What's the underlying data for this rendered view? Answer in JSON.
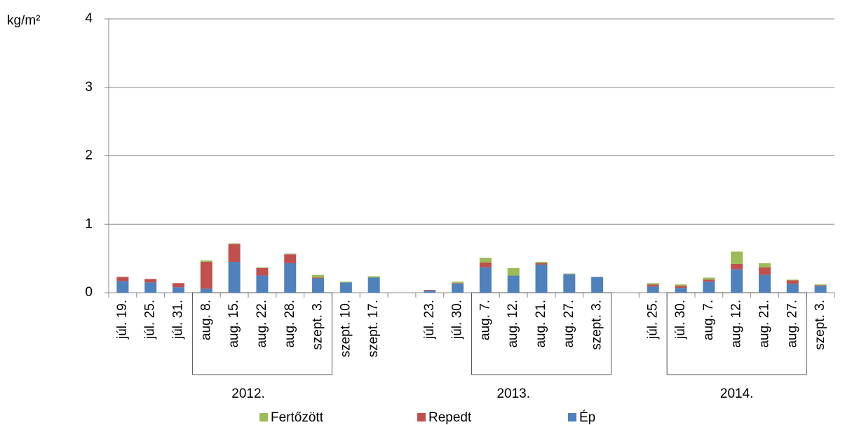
{
  "chart_data": {
    "type": "stacked_bar",
    "y_label": "kg/m²",
    "categories": [
      "júl. 19.",
      "júl. 25.",
      "júl. 31.",
      "aug. 8.",
      "aug. 15.",
      "aug. 22.",
      "aug. 28.",
      "szept. 3.",
      "szept. 10.",
      "szept. 17.",
      null,
      "júl. 23.",
      "júl. 30.",
      "aug. 7.",
      "aug. 12.",
      "aug. 21.",
      "aug. 27.",
      "szept. 3.",
      null,
      "júl. 25.",
      "júl. 30.",
      "aug. 7.",
      "aug. 12.",
      "aug. 21.",
      "aug. 27.",
      "szept. 3."
    ],
    "groups": [
      "2012.",
      "2013.",
      "2014."
    ],
    "series": [
      {
        "name": "Ép",
        "color": "#4f81bd",
        "values": [
          0.17,
          0.15,
          0.08,
          0.06,
          0.45,
          0.25,
          0.43,
          0.21,
          0.15,
          0.22,
          null,
          0.03,
          0.13,
          0.37,
          0.25,
          0.41,
          0.27,
          0.23,
          null,
          0.09,
          0.07,
          0.16,
          0.34,
          0.26,
          0.13,
          0.1
        ]
      },
      {
        "name": "Repedt",
        "color": "#c0504d",
        "values": [
          0.06,
          0.05,
          0.06,
          0.39,
          0.26,
          0.11,
          0.13,
          0.01,
          0,
          0,
          null,
          0.01,
          0.01,
          0.07,
          0,
          0.02,
          0,
          0,
          null,
          0.03,
          0.03,
          0.03,
          0.08,
          0.11,
          0.05,
          0.01
        ]
      },
      {
        "name": "Fertőzött",
        "color": "#9bbb59",
        "values": [
          0,
          0,
          0,
          0.02,
          0.01,
          0.01,
          0.01,
          0.04,
          0.01,
          0.02,
          null,
          0,
          0.02,
          0.07,
          0.11,
          0.02,
          0.01,
          0,
          null,
          0.02,
          0.02,
          0.03,
          0.18,
          0.06,
          0.01,
          0.01
        ]
      }
    ],
    "ylim": [
      0,
      4
    ],
    "yticks": [
      0,
      1,
      2,
      3,
      4
    ],
    "grid": true
  }
}
